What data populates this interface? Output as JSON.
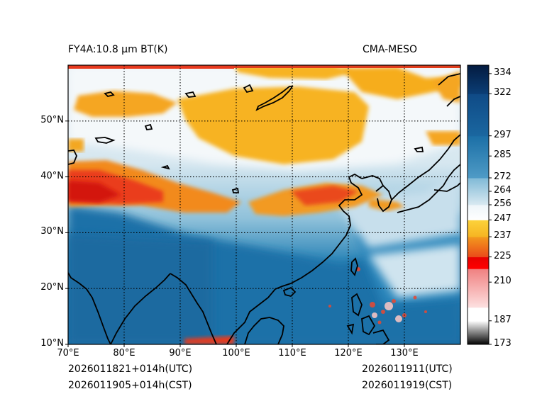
{
  "title_left": "FY4A:10.8 μm BT(K)",
  "title_right": "CMA-MESO",
  "footer": {
    "init_utc": "2026011821+014h(UTC)",
    "init_cst": "2026011905+014h(CST)",
    "valid_utc": "2026011911(UTC)",
    "valid_cst": "2026011919(CST)"
  },
  "map": {
    "lon_range": [
      70,
      140
    ],
    "lat_range": [
      10,
      60
    ],
    "lon_ticks": [
      70,
      80,
      90,
      100,
      110,
      120,
      130
    ],
    "lon_labels": [
      "70°E",
      "80°E",
      "90°E",
      "100°E",
      "110°E",
      "120°E",
      "130°E"
    ],
    "lat_ticks": [
      10,
      20,
      30,
      40,
      50
    ],
    "lat_labels": [
      "10°N",
      "20°N",
      "30°N",
      "40°N",
      "50°N"
    ]
  },
  "colorbar": {
    "range": [
      173,
      339
    ],
    "ticks": [
      173,
      187,
      210,
      225,
      237,
      247,
      256,
      264,
      272,
      285,
      297,
      322,
      334
    ],
    "labels": [
      "173",
      "187",
      "210",
      "225",
      "237",
      "247",
      "256",
      "264",
      "272",
      "285",
      "297",
      "322",
      "334"
    ]
  }
}
